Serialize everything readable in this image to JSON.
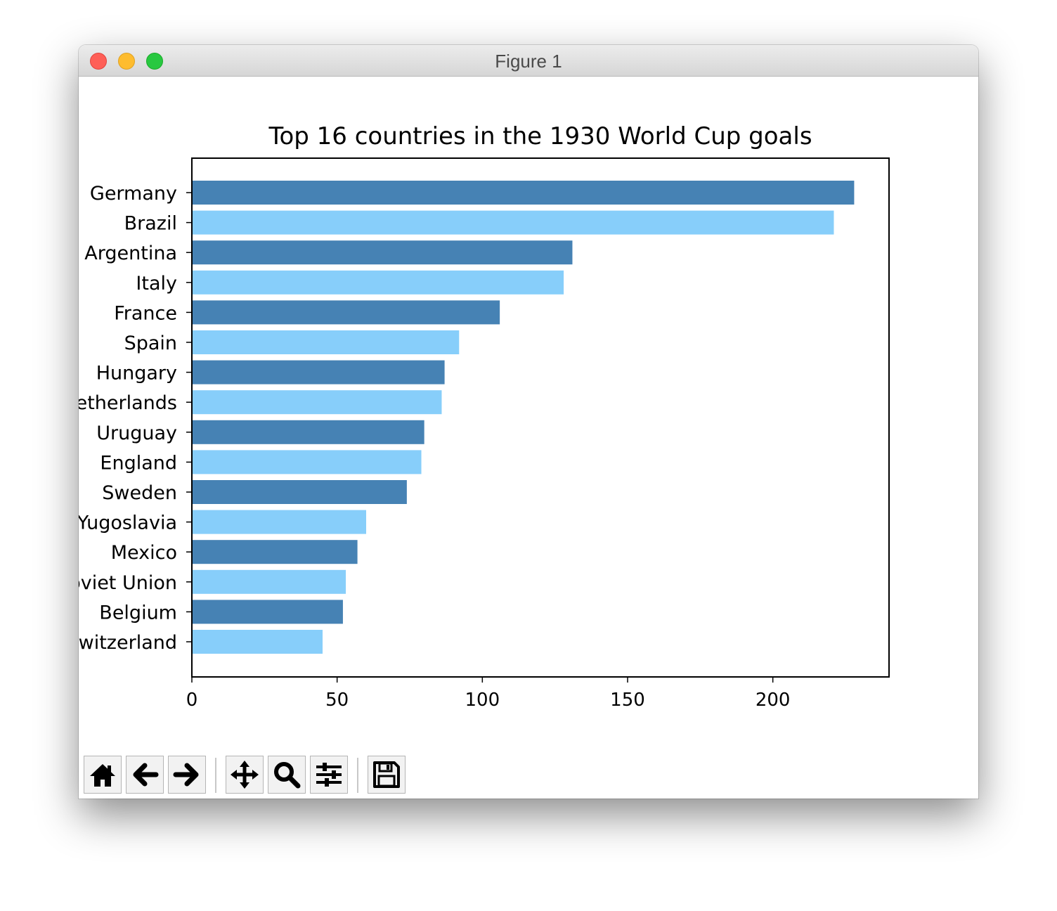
{
  "window": {
    "title": "Figure 1"
  },
  "toolbar": {
    "buttons": [
      {
        "name": "home-button",
        "icon": "home-icon"
      },
      {
        "name": "back-button",
        "icon": "arrow-left-icon"
      },
      {
        "name": "forward-button",
        "icon": "arrow-right-icon"
      },
      {
        "name": "pan-button",
        "icon": "move-icon"
      },
      {
        "name": "zoom-button",
        "icon": "magnifier-icon"
      },
      {
        "name": "configure-subplots-button",
        "icon": "sliders-icon"
      },
      {
        "name": "save-button",
        "icon": "floppy-disk-icon"
      }
    ]
  },
  "chart_data": {
    "type": "bar",
    "orientation": "horizontal",
    "title": "Top 16 countries in the 1930 World Cup goals",
    "xlabel": "",
    "ylabel": "",
    "categories": [
      "Germany",
      "Brazil",
      "Argentina",
      "Italy",
      "France",
      "Spain",
      "Hungary",
      "Netherlands",
      "Uruguay",
      "England",
      "Sweden",
      "Yugoslavia",
      "Mexico",
      "Soviet Union",
      "Belgium",
      "Switzerland"
    ],
    "values": [
      228,
      221,
      131,
      128,
      106,
      92,
      87,
      86,
      80,
      79,
      74,
      60,
      57,
      53,
      52,
      45
    ],
    "colors": [
      "#4682b4",
      "#87cefa"
    ],
    "xlim": [
      0,
      240
    ],
    "xticks": [
      0,
      50,
      100,
      150,
      200
    ],
    "grid": false,
    "legend": false
  }
}
